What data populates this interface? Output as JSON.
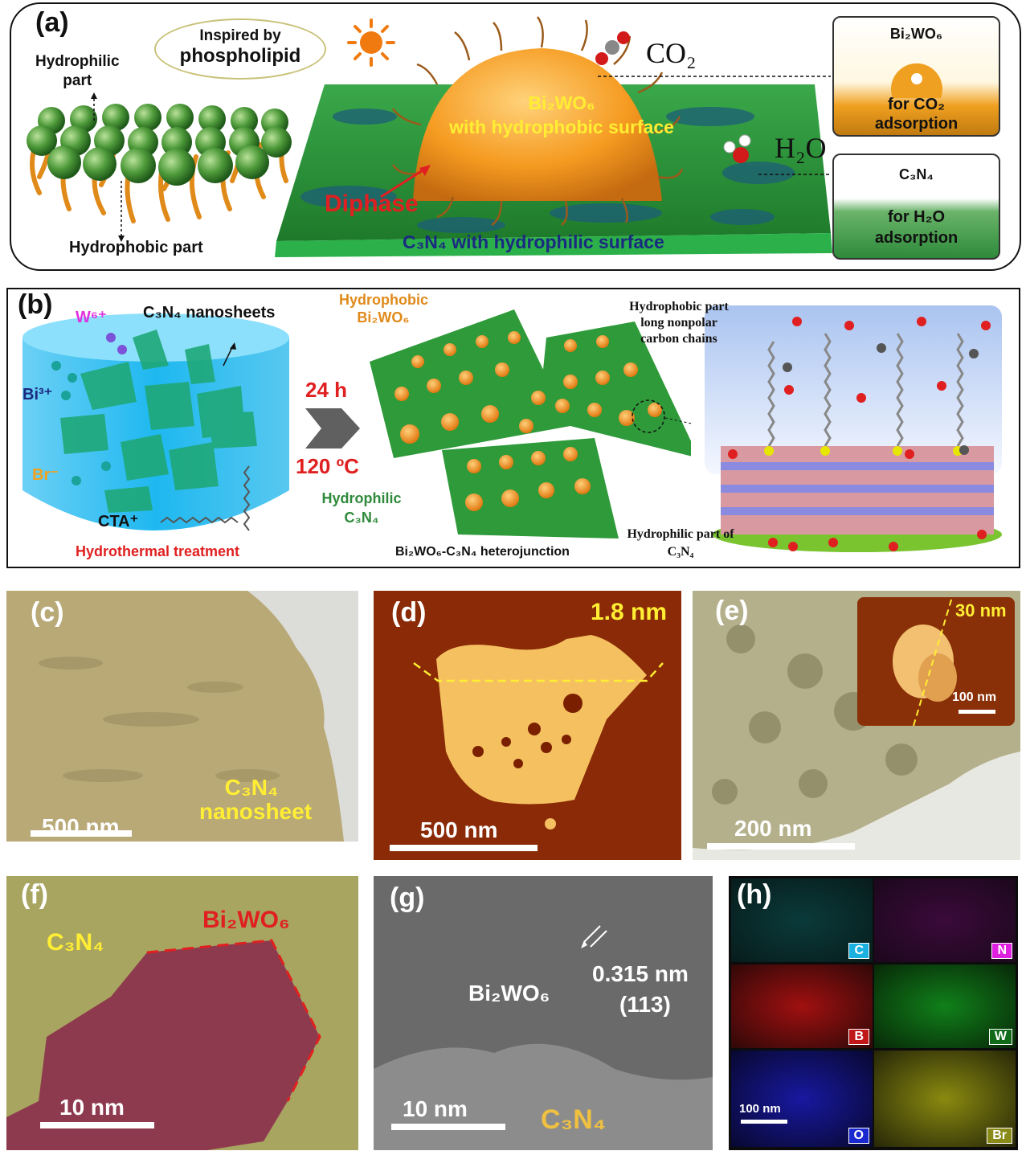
{
  "panel_a": {
    "label": "(a)",
    "bubble": [
      "Inspired by",
      "phospholipid"
    ],
    "hydrophilic": [
      "Hydrophilic",
      "part"
    ],
    "hydrophobic": "Hydrophobic part",
    "bi2wo6_title": "Bi₂WO₆",
    "bi2wo6_sub": "with hydrophobic surface",
    "diphase": "Diphase",
    "c3n4_surface": "C₃N₄ with hydrophilic surface",
    "co2": "CO₂",
    "h2o": "H₂O",
    "box_top_title": "Bi₂WO₆",
    "box_top_caption": [
      "for CO₂",
      "adsorption"
    ],
    "box_bottom_title": "C₃N₄",
    "box_bottom_caption": [
      "for H₂O",
      "adsorption"
    ]
  },
  "panel_b": {
    "label": "(b)",
    "w6": "W⁶⁺",
    "nanosheets": "C₃N₄ nanosheets",
    "bi3": "Bi³⁺",
    "br": "Br⁻",
    "cta": "CTA⁺",
    "hydrothermal": "Hydrothermal treatment",
    "time": "24 h",
    "temp": "120 ºC",
    "hydrophobic_bi2wo6": [
      "Hydrophobic",
      "Bi₂WO₆"
    ],
    "hydrophilic_c3n4": [
      "Hydrophilic",
      "C₃N₄"
    ],
    "heterojunction": "Bi₂WO₆-C₃N₄ heterojunction",
    "chains": [
      "Hydrophobic part",
      "long nonpolar",
      "carbon chains"
    ],
    "hydrophilic_part": [
      "Hydrophilic part of",
      "C₃N₄"
    ]
  },
  "panel_c": {
    "label": "(c)",
    "scale": "500 nm",
    "caption": [
      "C₃N₄",
      "nanosheet"
    ]
  },
  "panel_d": {
    "label": "(d)",
    "scale": "500 nm",
    "height": "1.8 nm"
  },
  "panel_e": {
    "label": "(e)",
    "scale": "200 nm",
    "inset_height": "30 nm",
    "inset_scale": "100 nm"
  },
  "panel_f": {
    "label": "(f)",
    "scale": "10 nm",
    "c3n4": "C₃N₄",
    "bi2wo6": "Bi₂WO₆"
  },
  "panel_g": {
    "label": "(g)",
    "scale": "10 nm",
    "bi2wo6": "Bi₂WO₆",
    "spacing": "0.315 nm",
    "plane": "(113)",
    "c3n4": "C₃N₄"
  },
  "panel_h": {
    "label": "(h)",
    "scale": "100 nm",
    "elements": [
      "C",
      "N",
      "B",
      "W",
      "O",
      "Br"
    ]
  },
  "colors": {
    "c3n4_green": "#2e9a3a",
    "bi2wo6_orange": "#f5a623",
    "label_red": "#e02020",
    "label_yellow": "#ffee33"
  }
}
